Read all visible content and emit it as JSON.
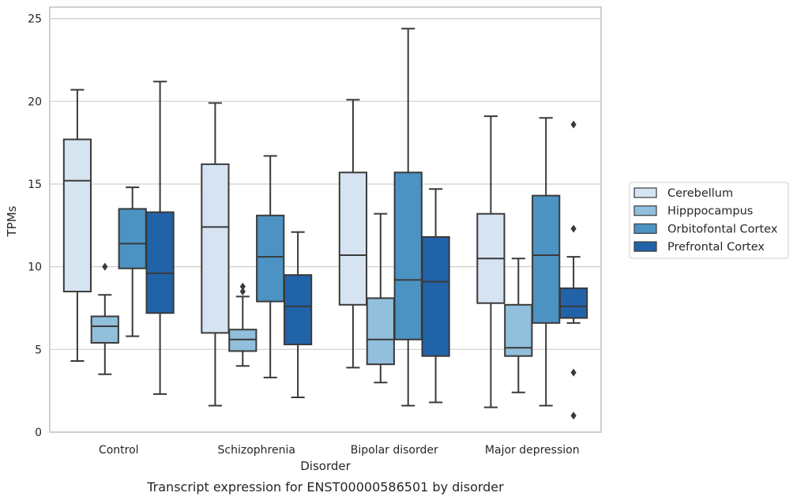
{
  "chart_data": {
    "type": "box",
    "title": "",
    "caption": "Transcript expression for ENST00000586501 by disorder",
    "xlabel": "Disorder",
    "ylabel": "TPMs",
    "categories": [
      "Control",
      "Schizophrenia",
      "Bipolar disorder",
      "Major depression"
    ],
    "ylim": [
      0,
      25.7
    ],
    "yticks": [
      0,
      5,
      10,
      15,
      20,
      25
    ],
    "grid": "horizontal",
    "legend_position": "right",
    "colors": {
      "Cerebellum": "#d6e4f2",
      "Hipppocampus": "#92bfdb",
      "Orbitofontal Cortex": "#4c93c4",
      "Prefrontal Cortex": "#2163a9",
      "edge": "#3a3a3a",
      "grid": "#cfcfcf",
      "frame": "#cfcfcf"
    },
    "series": [
      {
        "name": "Cerebellum",
        "boxes": [
          {
            "whislo": 4.3,
            "q1": 8.5,
            "med": 15.2,
            "q3": 17.7,
            "whishi": 20.7,
            "fliers": []
          },
          {
            "whislo": 1.6,
            "q1": 6.0,
            "med": 12.4,
            "q3": 16.2,
            "whishi": 19.9,
            "fliers": []
          },
          {
            "whislo": 3.9,
            "q1": 7.7,
            "med": 10.7,
            "q3": 15.7,
            "whishi": 20.1,
            "fliers": []
          },
          {
            "whislo": 1.5,
            "q1": 7.8,
            "med": 10.5,
            "q3": 13.2,
            "whishi": 19.1,
            "fliers": []
          }
        ]
      },
      {
        "name": "Hipppocampus",
        "boxes": [
          {
            "whislo": 3.5,
            "q1": 5.4,
            "med": 6.4,
            "q3": 7.0,
            "whishi": 8.3,
            "fliers": [
              10.0
            ]
          },
          {
            "whislo": 4.0,
            "q1": 4.9,
            "med": 5.6,
            "q3": 6.2,
            "whishi": 8.2,
            "fliers": [
              8.5,
              8.8
            ]
          },
          {
            "whislo": 3.0,
            "q1": 4.1,
            "med": 5.6,
            "q3": 8.1,
            "whishi": 13.2,
            "fliers": []
          },
          {
            "whislo": 2.4,
            "q1": 4.6,
            "med": 5.1,
            "q3": 7.7,
            "whishi": 10.5,
            "fliers": []
          }
        ]
      },
      {
        "name": "Orbitofontal Cortex",
        "boxes": [
          {
            "whislo": 5.8,
            "q1": 9.9,
            "med": 11.4,
            "q3": 13.5,
            "whishi": 14.8,
            "fliers": []
          },
          {
            "whislo": 3.3,
            "q1": 7.9,
            "med": 10.6,
            "q3": 13.1,
            "whishi": 16.7,
            "fliers": []
          },
          {
            "whislo": 1.6,
            "q1": 5.6,
            "med": 9.2,
            "q3": 15.7,
            "whishi": 24.4,
            "fliers": []
          },
          {
            "whislo": 1.6,
            "q1": 6.6,
            "med": 10.7,
            "q3": 14.3,
            "whishi": 19.0,
            "fliers": []
          }
        ]
      },
      {
        "name": "Prefrontal Cortex",
        "boxes": [
          {
            "whislo": 2.3,
            "q1": 7.2,
            "med": 9.6,
            "q3": 13.3,
            "whishi": 21.2,
            "fliers": []
          },
          {
            "whislo": 2.1,
            "q1": 5.3,
            "med": 7.6,
            "q3": 9.5,
            "whishi": 12.1,
            "fliers": []
          },
          {
            "whislo": 1.8,
            "q1": 4.6,
            "med": 9.1,
            "q3": 11.8,
            "whishi": 14.7,
            "fliers": []
          },
          {
            "whislo": 6.6,
            "q1": 6.9,
            "med": 7.6,
            "q3": 8.7,
            "whishi": 10.6,
            "fliers": [
              18.6,
              12.3,
              3.6,
              1.0
            ]
          }
        ]
      }
    ]
  }
}
